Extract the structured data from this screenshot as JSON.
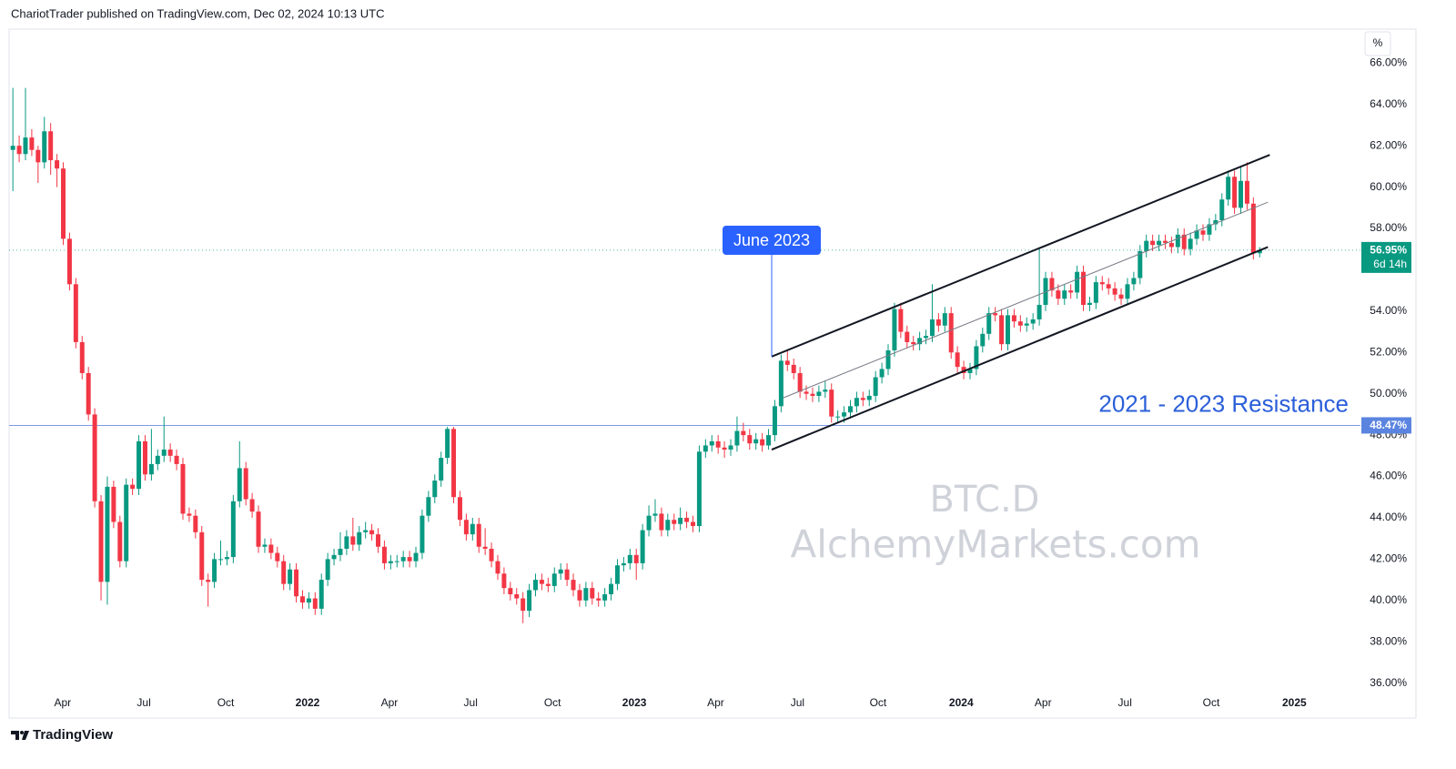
{
  "header": "ChariotTrader published on TradingView.com, Dec 02, 2024 10:13 UTC",
  "footer_brand": "TradingView",
  "chart_data": {
    "type": "candlestick",
    "axis_unit": "%",
    "up_color": "#089981",
    "down_color": "#f23645",
    "grid": false,
    "watermark": [
      "BTC.D",
      "AlchemyMarkets.com"
    ],
    "ylim": [
      35.5,
      67.6
    ],
    "yticks": [
      {
        "value": 36,
        "label": "36.00%"
      },
      {
        "value": 38,
        "label": "38.00%"
      },
      {
        "value": 40,
        "label": "40.00%"
      },
      {
        "value": 42,
        "label": "42.00%"
      },
      {
        "value": 44,
        "label": "44.00%"
      },
      {
        "value": 46,
        "label": "46.00%"
      },
      {
        "value": 48,
        "label": "48.00%"
      },
      {
        "value": 50,
        "label": "50.00%"
      },
      {
        "value": 52,
        "label": "52.00%"
      },
      {
        "value": 54,
        "label": "54.00%"
      },
      {
        "value": 56,
        "label": "56.00%"
      },
      {
        "value": 58,
        "label": "58.00%"
      },
      {
        "value": 60,
        "label": "60.00%"
      },
      {
        "value": 62,
        "label": "62.00%"
      },
      {
        "value": 64,
        "label": "64.00%"
      },
      {
        "value": 66,
        "label": "66.00%"
      }
    ],
    "xlim": [
      -0.6,
      214
    ],
    "xticks": [
      {
        "value": 7.9,
        "label": "Apr"
      },
      {
        "value": 20.8,
        "label": "Jul"
      },
      {
        "value": 33.8,
        "label": "Oct"
      },
      {
        "value": 46.8,
        "label": "2022"
      },
      {
        "value": 59.8,
        "label": "Apr"
      },
      {
        "value": 72.7,
        "label": "Jul"
      },
      {
        "value": 85.7,
        "label": "Oct"
      },
      {
        "value": 98.7,
        "label": "2023"
      },
      {
        "value": 111.6,
        "label": "Apr"
      },
      {
        "value": 124.6,
        "label": "Jul"
      },
      {
        "value": 137.4,
        "label": "Oct"
      },
      {
        "value": 150.6,
        "label": "2024"
      },
      {
        "value": 163.6,
        "label": "Apr"
      },
      {
        "value": 176.6,
        "label": "Jul"
      },
      {
        "value": 190.3,
        "label": "Oct"
      },
      {
        "value": 203.5,
        "label": "2025"
      }
    ],
    "ohlc": [
      [
        61.8,
        64.8,
        59.8,
        62.0
      ],
      [
        62.0,
        62.5,
        61.2,
        61.6
      ],
      [
        61.6,
        64.8,
        61.3,
        62.4
      ],
      [
        62.4,
        62.8,
        61.5,
        61.8
      ],
      [
        61.8,
        62.0,
        60.2,
        61.2
      ],
      [
        61.2,
        63.4,
        60.9,
        62.7
      ],
      [
        62.7,
        63.1,
        60.6,
        61.3
      ],
      [
        61.3,
        61.6,
        60.0,
        60.9
      ],
      [
        60.9,
        61.2,
        57.2,
        57.5
      ],
      [
        57.5,
        57.8,
        55.0,
        55.3
      ],
      [
        55.3,
        55.6,
        52.2,
        52.5
      ],
      [
        52.5,
        52.8,
        50.7,
        51.0
      ],
      [
        51.0,
        51.3,
        48.7,
        49.0
      ],
      [
        49.0,
        49.3,
        44.5,
        44.8
      ],
      [
        44.8,
        45.1,
        40.0,
        40.9
      ],
      [
        40.9,
        46.0,
        39.8,
        45.5
      ],
      [
        45.5,
        45.8,
        43.5,
        43.8
      ],
      [
        43.8,
        44.1,
        41.6,
        41.9
      ],
      [
        41.9,
        45.9,
        41.6,
        45.6
      ],
      [
        45.6,
        45.9,
        45.1,
        45.4
      ],
      [
        45.4,
        48.0,
        45.1,
        47.7
      ],
      [
        47.7,
        48.0,
        45.8,
        46.1
      ],
      [
        46.1,
        48.3,
        45.8,
        46.6
      ],
      [
        46.6,
        47.3,
        46.3,
        47.0
      ],
      [
        47.0,
        48.9,
        46.7,
        47.3
      ],
      [
        47.3,
        47.6,
        46.7,
        47.0
      ],
      [
        47.0,
        47.3,
        46.3,
        46.6
      ],
      [
        46.6,
        46.9,
        43.9,
        44.2
      ],
      [
        44.2,
        44.5,
        43.8,
        44.1
      ],
      [
        44.1,
        44.4,
        43.0,
        43.3
      ],
      [
        43.3,
        43.6,
        40.7,
        41.0
      ],
      [
        41.0,
        41.3,
        39.7,
        40.9
      ],
      [
        40.9,
        42.3,
        40.6,
        42.0
      ],
      [
        42.0,
        42.9,
        41.7,
        42.0
      ],
      [
        42.0,
        42.4,
        41.7,
        42.1
      ],
      [
        42.1,
        45.1,
        41.8,
        44.8
      ],
      [
        44.8,
        47.7,
        44.5,
        46.4
      ],
      [
        46.4,
        46.7,
        44.6,
        44.9
      ],
      [
        44.9,
        45.2,
        44.0,
        44.3
      ],
      [
        44.3,
        44.6,
        42.3,
        42.6
      ],
      [
        42.6,
        43.0,
        42.3,
        42.7
      ],
      [
        42.7,
        43.0,
        42.0,
        42.3
      ],
      [
        42.3,
        42.6,
        41.6,
        41.9
      ],
      [
        41.9,
        42.2,
        40.5,
        40.8
      ],
      [
        40.8,
        41.8,
        40.5,
        41.5
      ],
      [
        41.5,
        41.8,
        39.9,
        40.2
      ],
      [
        40.2,
        40.5,
        39.6,
        39.9
      ],
      [
        39.9,
        40.4,
        39.6,
        40.1
      ],
      [
        40.1,
        40.4,
        39.3,
        39.6
      ],
      [
        39.6,
        41.3,
        39.3,
        41.0
      ],
      [
        41.0,
        42.3,
        40.7,
        42.0
      ],
      [
        42.0,
        42.5,
        41.7,
        42.2
      ],
      [
        42.2,
        43.3,
        41.9,
        42.5
      ],
      [
        42.5,
        43.4,
        42.2,
        43.1
      ],
      [
        43.1,
        44.0,
        42.4,
        42.7
      ],
      [
        42.7,
        43.6,
        42.4,
        43.3
      ],
      [
        43.3,
        43.8,
        43.0,
        43.4
      ],
      [
        43.4,
        43.7,
        42.9,
        43.2
      ],
      [
        43.2,
        43.5,
        42.3,
        42.6
      ],
      [
        42.6,
        42.9,
        41.5,
        41.8
      ],
      [
        41.8,
        42.2,
        41.5,
        41.9
      ],
      [
        41.9,
        42.2,
        41.6,
        41.9
      ],
      [
        41.9,
        42.4,
        41.6,
        42.1
      ],
      [
        42.1,
        42.4,
        41.6,
        41.9
      ],
      [
        41.9,
        42.6,
        41.6,
        42.3
      ],
      [
        42.3,
        44.4,
        42.0,
        44.1
      ],
      [
        44.1,
        45.3,
        43.8,
        45.0
      ],
      [
        45.0,
        46.1,
        44.7,
        45.8
      ],
      [
        45.8,
        47.2,
        45.5,
        46.9
      ],
      [
        46.9,
        48.4,
        46.6,
        48.3
      ],
      [
        48.3,
        48.4,
        44.7,
        45.0
      ],
      [
        45.0,
        45.3,
        43.6,
        43.9
      ],
      [
        43.9,
        44.2,
        42.9,
        43.2
      ],
      [
        43.2,
        44.0,
        42.9,
        43.7
      ],
      [
        43.7,
        44.0,
        42.3,
        42.6
      ],
      [
        42.6,
        43.5,
        42.2,
        42.5
      ],
      [
        42.5,
        42.8,
        41.6,
        41.9
      ],
      [
        41.9,
        42.2,
        41.0,
        41.3
      ],
      [
        41.3,
        41.6,
        40.3,
        40.6
      ],
      [
        40.6,
        40.9,
        40.0,
        40.3
      ],
      [
        40.3,
        40.6,
        39.8,
        40.1
      ],
      [
        40.1,
        40.4,
        38.9,
        39.5
      ],
      [
        39.5,
        40.8,
        39.2,
        40.5
      ],
      [
        40.5,
        41.3,
        40.2,
        41.0
      ],
      [
        41.0,
        41.3,
        40.5,
        40.8
      ],
      [
        40.8,
        41.1,
        40.4,
        40.7
      ],
      [
        40.7,
        41.6,
        40.4,
        41.3
      ],
      [
        41.3,
        41.8,
        41.0,
        41.5
      ],
      [
        41.5,
        41.8,
        40.7,
        41.0
      ],
      [
        41.0,
        41.3,
        40.2,
        40.5
      ],
      [
        40.5,
        40.8,
        39.7,
        40.0
      ],
      [
        40.0,
        40.9,
        39.7,
        40.6
      ],
      [
        40.6,
        40.9,
        39.8,
        40.1
      ],
      [
        40.1,
        40.4,
        39.7,
        40.0
      ],
      [
        40.0,
        40.6,
        39.7,
        40.3
      ],
      [
        40.3,
        41.1,
        40.0,
        40.8
      ],
      [
        40.8,
        42.0,
        40.5,
        41.7
      ],
      [
        41.7,
        42.1,
        41.4,
        41.8
      ],
      [
        41.8,
        42.5,
        41.5,
        42.2
      ],
      [
        42.2,
        42.5,
        41.0,
        41.8
      ],
      [
        41.8,
        43.7,
        41.5,
        43.4
      ],
      [
        43.4,
        44.6,
        43.1,
        44.1
      ],
      [
        44.1,
        44.9,
        43.8,
        44.2
      ],
      [
        44.2,
        44.5,
        43.1,
        43.4
      ],
      [
        43.4,
        44.2,
        43.1,
        43.9
      ],
      [
        43.9,
        44.2,
        43.4,
        43.7
      ],
      [
        43.7,
        44.5,
        43.4,
        44.0
      ],
      [
        44.0,
        44.3,
        43.5,
        43.8
      ],
      [
        43.8,
        44.1,
        43.3,
        43.6
      ],
      [
        43.6,
        47.5,
        43.3,
        47.2
      ],
      [
        47.2,
        47.8,
        46.9,
        47.5
      ],
      [
        47.5,
        48.0,
        47.2,
        47.7
      ],
      [
        47.7,
        48.0,
        47.1,
        47.4
      ],
      [
        47.4,
        47.7,
        46.9,
        47.3
      ],
      [
        47.3,
        47.8,
        47.0,
        47.5
      ],
      [
        47.5,
        48.9,
        47.2,
        48.2
      ],
      [
        48.2,
        48.6,
        47.7,
        48.0
      ],
      [
        48.0,
        48.3,
        47.3,
        47.6
      ],
      [
        47.6,
        48.1,
        47.3,
        47.8
      ],
      [
        47.8,
        48.1,
        47.2,
        47.5
      ],
      [
        47.5,
        48.3,
        47.3,
        48.0
      ],
      [
        48.0,
        49.7,
        47.7,
        49.4
      ],
      [
        49.4,
        51.9,
        49.1,
        51.6
      ],
      [
        51.6,
        52.1,
        51.1,
        51.4
      ],
      [
        51.4,
        51.7,
        50.7,
        51.0
      ],
      [
        51.0,
        51.3,
        49.8,
        50.1
      ],
      [
        50.1,
        50.4,
        49.7,
        50.0
      ],
      [
        50.0,
        50.3,
        49.6,
        49.9
      ],
      [
        49.9,
        50.4,
        49.6,
        50.1
      ],
      [
        50.1,
        50.6,
        49.8,
        50.2
      ],
      [
        50.2,
        50.5,
        48.6,
        48.9
      ],
      [
        48.9,
        49.2,
        48.6,
        48.9
      ],
      [
        48.9,
        49.4,
        48.6,
        49.1
      ],
      [
        49.1,
        49.7,
        48.8,
        49.4
      ],
      [
        49.4,
        50.1,
        49.1,
        49.8
      ],
      [
        49.8,
        50.1,
        49.4,
        49.7
      ],
      [
        49.7,
        50.2,
        49.4,
        49.9
      ],
      [
        49.9,
        51.1,
        49.6,
        50.8
      ],
      [
        50.8,
        51.5,
        50.5,
        51.2
      ],
      [
        51.2,
        52.4,
        50.9,
        52.1
      ],
      [
        52.1,
        54.4,
        51.8,
        54.1
      ],
      [
        54.1,
        54.4,
        52.7,
        53.0
      ],
      [
        53.0,
        53.3,
        52.2,
        52.5
      ],
      [
        52.5,
        52.8,
        52.1,
        52.4
      ],
      [
        52.4,
        53.0,
        52.1,
        52.7
      ],
      [
        52.7,
        53.1,
        52.4,
        52.8
      ],
      [
        52.8,
        55.3,
        52.5,
        53.6
      ],
      [
        53.6,
        53.9,
        53.0,
        53.3
      ],
      [
        53.3,
        54.2,
        53.0,
        53.9
      ],
      [
        53.9,
        54.2,
        51.7,
        52.0
      ],
      [
        52.0,
        52.3,
        51.0,
        51.3
      ],
      [
        51.3,
        51.6,
        50.7,
        51.0
      ],
      [
        51.0,
        51.5,
        50.7,
        51.2
      ],
      [
        51.2,
        52.6,
        50.9,
        52.3
      ],
      [
        52.3,
        53.2,
        52.0,
        52.9
      ],
      [
        52.9,
        54.2,
        52.6,
        53.9
      ],
      [
        53.9,
        54.2,
        53.5,
        53.8
      ],
      [
        53.8,
        54.1,
        52.1,
        52.4
      ],
      [
        52.4,
        54.1,
        52.1,
        53.8
      ],
      [
        53.8,
        54.1,
        53.2,
        53.5
      ],
      [
        53.5,
        53.8,
        53.0,
        53.3
      ],
      [
        53.3,
        53.7,
        53.0,
        53.4
      ],
      [
        53.4,
        53.9,
        53.1,
        53.6
      ],
      [
        53.6,
        57.1,
        53.3,
        54.3
      ],
      [
        54.3,
        55.9,
        54.0,
        55.6
      ],
      [
        55.6,
        55.9,
        54.7,
        55.0
      ],
      [
        55.0,
        55.3,
        54.3,
        54.6
      ],
      [
        54.6,
        55.3,
        54.3,
        55.0
      ],
      [
        55.0,
        55.3,
        54.6,
        54.9
      ],
      [
        54.9,
        56.2,
        54.6,
        55.9
      ],
      [
        55.9,
        56.2,
        54.0,
        54.3
      ],
      [
        54.3,
        54.7,
        54.0,
        54.4
      ],
      [
        54.4,
        55.7,
        54.1,
        55.4
      ],
      [
        55.4,
        55.7,
        55.0,
        55.3
      ],
      [
        55.3,
        55.6,
        54.8,
        55.1
      ],
      [
        55.1,
        55.4,
        54.5,
        54.8
      ],
      [
        54.8,
        55.1,
        54.3,
        54.6
      ],
      [
        54.6,
        55.6,
        54.3,
        55.3
      ],
      [
        55.3,
        55.9,
        55.0,
        55.6
      ],
      [
        55.6,
        57.2,
        55.3,
        56.9
      ],
      [
        56.9,
        57.7,
        56.6,
        57.4
      ],
      [
        57.4,
        57.7,
        56.9,
        57.2
      ],
      [
        57.2,
        57.7,
        56.9,
        57.4
      ],
      [
        57.4,
        57.7,
        57.0,
        57.3
      ],
      [
        57.3,
        57.6,
        56.8,
        57.1
      ],
      [
        57.1,
        58.0,
        56.8,
        57.7
      ],
      [
        57.7,
        58.0,
        56.7,
        57.0
      ],
      [
        57.0,
        57.8,
        56.7,
        57.5
      ],
      [
        57.5,
        58.2,
        57.2,
        57.9
      ],
      [
        57.9,
        58.2,
        57.4,
        57.7
      ],
      [
        57.7,
        58.5,
        57.4,
        58.2
      ],
      [
        58.2,
        58.7,
        57.9,
        58.4
      ],
      [
        58.4,
        59.7,
        58.1,
        59.4
      ],
      [
        59.4,
        60.8,
        59.1,
        60.5
      ],
      [
        60.5,
        60.8,
        58.7,
        59.0
      ],
      [
        59.0,
        61.0,
        58.7,
        60.3
      ],
      [
        60.3,
        61.2,
        58.9,
        59.2
      ],
      [
        59.2,
        59.5,
        56.5,
        56.8
      ],
      [
        56.8,
        57.1,
        56.6,
        56.95
      ]
    ],
    "trendlines": [
      {
        "color": "#131722",
        "width": 2,
        "points": [
          [
            120.5,
            51.8
          ],
          [
            199.6,
            61.56
          ]
        ]
      },
      {
        "color": "#131722",
        "width": 2,
        "points": [
          [
            120.5,
            47.3
          ],
          [
            199.3,
            57.1
          ]
        ]
      },
      {
        "color": "#787b86",
        "width": 1,
        "points": [
          [
            122.3,
            49.8
          ],
          [
            199.3,
            59.27
          ]
        ]
      }
    ],
    "price_lines": [
      {
        "value": 48.47,
        "label": "48.47%",
        "color": "#5b84e0",
        "style": "solid"
      },
      {
        "value": 56.95,
        "label": "56.95%",
        "countdown": "6d 14h",
        "color": "#089981",
        "style": "dotted"
      }
    ],
    "annotations": [
      {
        "text": "June 2023"
      },
      {
        "text": "2021 - 2023 Resistance"
      }
    ]
  }
}
